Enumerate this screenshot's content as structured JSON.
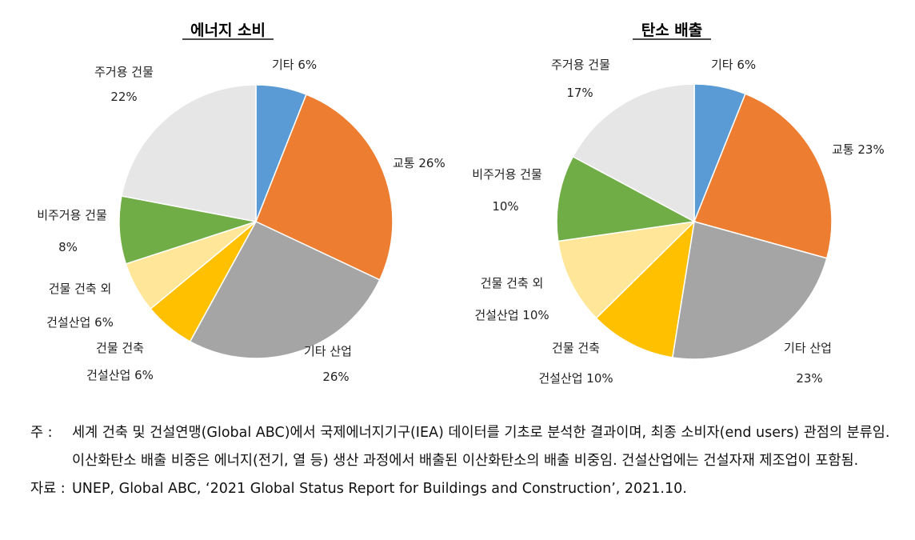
{
  "chart_data": [
    {
      "type": "pie",
      "title": "에너지 소비",
      "start": "12 o'clock, clockwise",
      "slices": [
        {
          "label": "기타",
          "value": 6,
          "value_label": "6%",
          "color": "#5b9bd5"
        },
        {
          "label": "교통",
          "value": 26,
          "value_label": "26%",
          "color": "#ed7d31"
        },
        {
          "label": "기타 산업",
          "value": 26,
          "value_label": "26%",
          "color": "#a5a5a5"
        },
        {
          "label": "건물 건축 건설산업",
          "value": 6,
          "value_label": "6%",
          "color": "#ffc000"
        },
        {
          "label": "건물 건축 외 건설산업",
          "value": 6,
          "value_label": "6%",
          "color": "#ffe699"
        },
        {
          "label": "비주거용 건물",
          "value": 8,
          "value_label": "8%",
          "color": "#70ad47"
        },
        {
          "label": "주거용 건물",
          "value": 22,
          "value_label": "22%",
          "color": "#e7e6e6"
        }
      ]
    },
    {
      "type": "pie",
      "title": "탄소 배출",
      "start": "12 o'clock, clockwise",
      "slices": [
        {
          "label": "기타",
          "value": 6,
          "value_label": "6%",
          "color": "#5b9bd5"
        },
        {
          "label": "교통",
          "value": 23,
          "value_label": "23%",
          "color": "#ed7d31"
        },
        {
          "label": "기타 산업",
          "value": 23,
          "value_label": "23%",
          "color": "#a5a5a5"
        },
        {
          "label": "건물 건축 건설산업",
          "value": 10,
          "value_label": "10%",
          "color": "#ffc000"
        },
        {
          "label": "건물 건축 외 건설산업",
          "value": 10,
          "value_label": "10%",
          "color": "#ffe699"
        },
        {
          "label": "비주거용 건물",
          "value": 10,
          "value_label": "10%",
          "color": "#70ad47"
        },
        {
          "label": "주거용 건물",
          "value": 17,
          "value_label": "17%",
          "color": "#e7e6e6"
        }
      ]
    }
  ],
  "notes": {
    "note_key": "주 :",
    "note_text": "세계 건축 및 건설연맹(Global ABC)에서 국제에너지기구(IEA) 데이터를 기초로 분석한 결과이며, 최종 소비자(end users) 관점의 분류임. 이산화탄소 배출 비중은 에너지(전기, 열 등) 생산 과정에서 배출된 이산화탄소의 배출 비중임. 건설산업에는 건설자재 제조업이 포함됨.",
    "source_key": "자료 :",
    "source_text": "UNEP, Global ABC, ‘2021 Global Status Report for Buildings and Construction’, 2021.10."
  }
}
